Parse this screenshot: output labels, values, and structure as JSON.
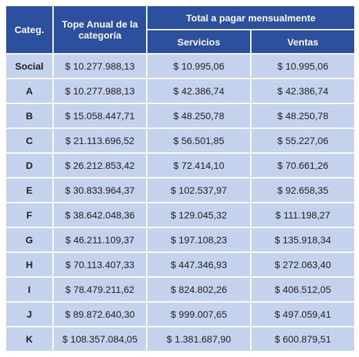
{
  "table": {
    "header": {
      "categ": "Categ.",
      "tope": "Tope Anual de la categoría",
      "total": "Total a pagar mensualmente",
      "servicios": "Servicios",
      "ventas": "Ventas"
    },
    "rows": [
      [
        "Social",
        "$ 10.277.988,13",
        "$ 10.995,06",
        "$ 10.995,06"
      ],
      [
        "A",
        "$ 10.277.988,13",
        "$ 42.386,74",
        "$ 42.386,74"
      ],
      [
        "B",
        "$ 15.058.447,71",
        "$ 48.250,78",
        "$ 48.250,78"
      ],
      [
        "C",
        "$ 21.113.696,52",
        "$ 56.501,85",
        "$ 55.227,06"
      ],
      [
        "D",
        "$ 26.212.853,42",
        "$ 72.414,10",
        "$ 70.661,26"
      ],
      [
        "E",
        "$ 30.833.964,37",
        "$ 102.537,97",
        "$ 92.658,35"
      ],
      [
        "F",
        "$ 38.642.048,36",
        "$ 129.045,32",
        "$ 111.198,27"
      ],
      [
        "G",
        "$ 46.211.109,37",
        "$ 197.108,23",
        "$ 135.918,34"
      ],
      [
        "H",
        "$ 70.113.407,33",
        "$ 447.346,93",
        "$ 272.063,40"
      ],
      [
        "I",
        "$ 78.479.211,62",
        "$ 824.802,26",
        "$ 406.512,05"
      ],
      [
        "J",
        "$ 89.872.640,30",
        "$ 999.007,65",
        "$ 497.059,41"
      ],
      [
        "K",
        "$ 108.357.084,05",
        "$ 1.381.687,90",
        "$ 600.879,51"
      ]
    ]
  }
}
